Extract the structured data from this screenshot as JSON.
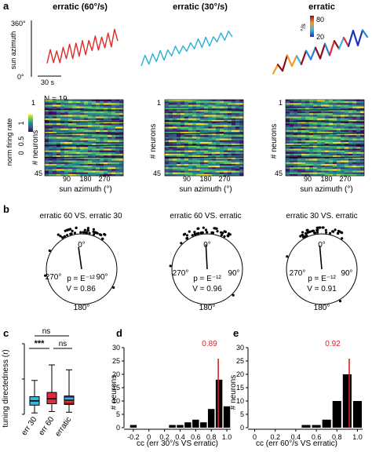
{
  "panel_labels": [
    "a",
    "b",
    "c",
    "d",
    "e"
  ],
  "panel_a": {
    "titles": [
      "erratic (60°/s)",
      "erratic (30°/s)",
      "erratic"
    ],
    "trace_y_tick_top": "360°",
    "trace_y_tick_bottom": "0°",
    "trace_ylabel": "sun azimuth",
    "trace_scalebar_label": "30 s",
    "trace_colors": [
      "#e02a2a",
      "#2ab0d8"
    ],
    "speed_colorbar": {
      "label": "°/s",
      "max_label": "80",
      "min_label": "20"
    },
    "n_label": "N = 19",
    "heatmap_colorbar": {
      "label": "norm firing rate",
      "tick_labels": [
        "0",
        "0.5",
        "1"
      ]
    },
    "heatmap_ylabel": "# neurons",
    "heatmap_yticks": [
      "1",
      "45"
    ],
    "heatmap_xticks": [
      "90",
      "180",
      "270"
    ],
    "heatmap_xlabel": "sun azimuth (°)",
    "heatmap_divider_rows": [
      6,
      13,
      20,
      27,
      34
    ]
  },
  "panel_b": {
    "titles": [
      "erratic 60 VS. erratic 30",
      "erratic 60 VS. erratic",
      "erratic 30 VS. erratic"
    ],
    "angle_labels": [
      "0°",
      "90°",
      "180°",
      "270°"
    ],
    "p_labels": [
      "p = E⁻¹²",
      "p = E⁻¹²",
      "p = E⁻¹²"
    ],
    "v_labels": [
      "V = 0.86",
      "V = 0.96",
      "V = 0.91"
    ],
    "vector_length": [
      0.86,
      0.96,
      0.91
    ]
  },
  "chart_data": [
    {
      "panel": "c",
      "type": "box",
      "categories": [
        "err 30",
        "err 60",
        "erratic"
      ],
      "ylabel": "tuning directedness (r)",
      "ylim": [
        0,
        1.0
      ],
      "boxes": [
        {
          "min": 0.02,
          "q1": 0.13,
          "median": 0.19,
          "q3": 0.25,
          "max": 0.48
        },
        {
          "min": 0.04,
          "q1": 0.15,
          "median": 0.22,
          "q3": 0.31,
          "max": 0.7
        },
        {
          "min": 0.03,
          "q1": 0.14,
          "median": 0.2,
          "q3": 0.26,
          "max": 0.63
        }
      ],
      "colors": [
        "#3ab4e0",
        "#e8283a",
        "#f39a2a"
      ],
      "annotations": [
        "ns",
        "***",
        "ns"
      ]
    },
    {
      "panel": "d",
      "type": "bar",
      "x": [
        -0.2,
        0.3,
        0.4,
        0.5,
        0.6,
        0.7,
        0.8,
        0.9,
        1.0
      ],
      "values": [
        1,
        1,
        1,
        2,
        3,
        2,
        7,
        18,
        8
      ],
      "xlabel": "cc (err 30°/s VS erratic)",
      "ylabel": "# neurons",
      "xticks": [
        "-0.2",
        "0",
        "0.2",
        "0.4",
        "0.6",
        "0.8",
        "1.0"
      ],
      "yticks": [
        "0",
        "5",
        "10",
        "15",
        "20",
        "25",
        "30"
      ],
      "xlim": [
        -0.3,
        1.05
      ],
      "ylim": [
        0,
        30
      ],
      "median": 0.89,
      "median_label": "0.89"
    },
    {
      "panel": "e",
      "type": "bar",
      "x": [
        0.5,
        0.6,
        0.7,
        0.8,
        0.9,
        1.0
      ],
      "values": [
        1,
        1,
        3,
        10,
        20,
        10
      ],
      "xlabel": "cc (err 60°/s VS erratic)",
      "ylabel": "# neurons",
      "xticks": [
        "0",
        "0.2",
        "0.4",
        "0.6",
        "0.8",
        "1.0"
      ],
      "yticks": [
        "0",
        "5",
        "10",
        "15",
        "20",
        "25",
        "30"
      ],
      "xlim": [
        -0.05,
        1.05
      ],
      "ylim": [
        0,
        30
      ],
      "median": 0.92,
      "median_label": "0.92"
    }
  ]
}
